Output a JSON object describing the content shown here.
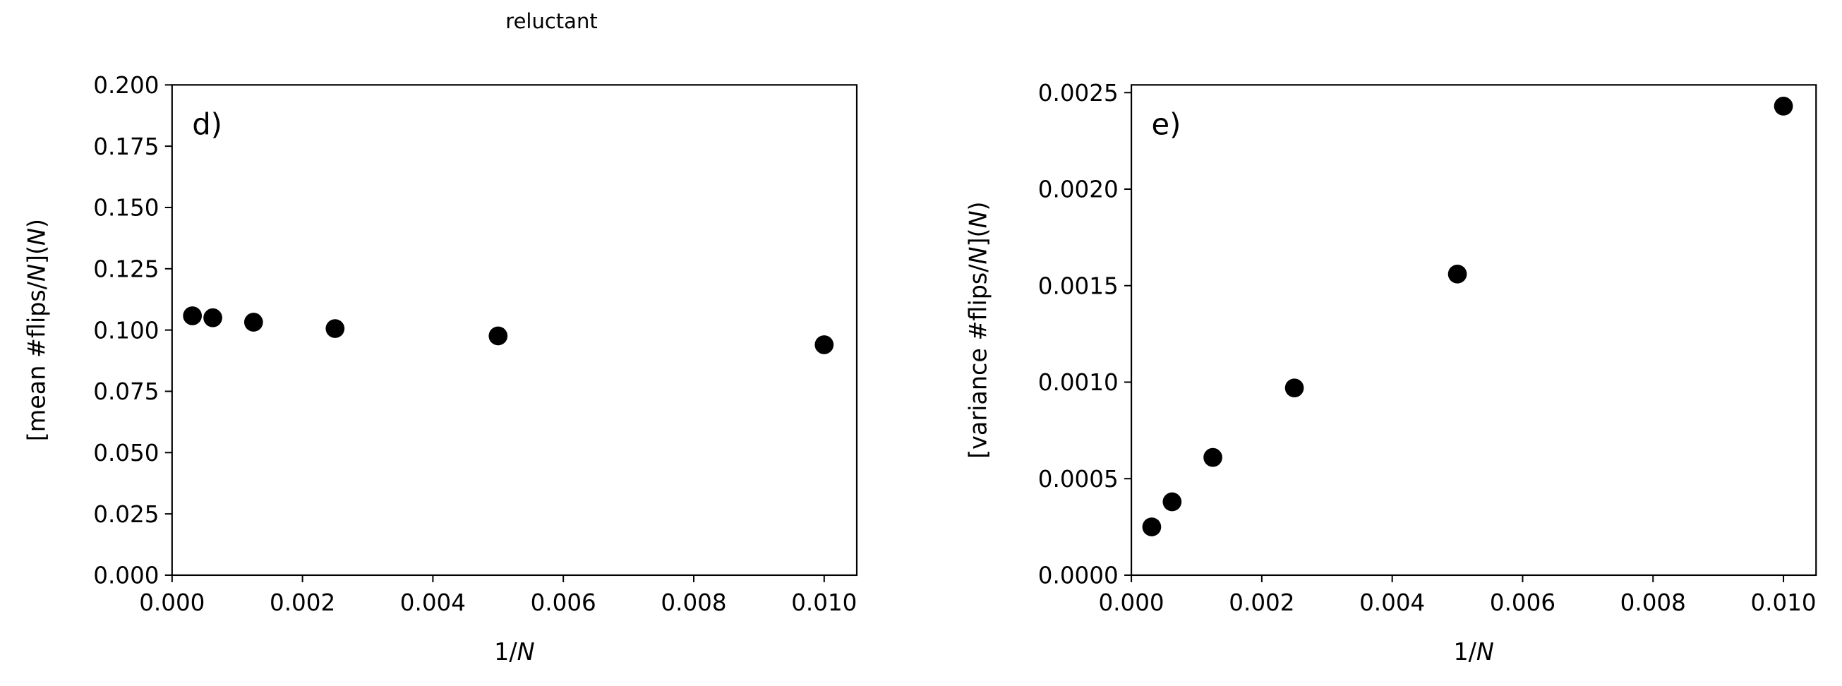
{
  "figure": {
    "suptitle": "reluctant"
  },
  "chart_data": [
    {
      "type": "scatter",
      "panel_label": "d)",
      "xlabel": "1/N",
      "ylabel": "[mean #flips/N](N)",
      "xlim": [
        0.0,
        0.0105
      ],
      "ylim": [
        0.0,
        0.2
      ],
      "xticks": [
        "0.000",
        "0.002",
        "0.004",
        "0.006",
        "0.008",
        "0.010"
      ],
      "yticks": [
        "0.000",
        "0.025",
        "0.050",
        "0.075",
        "0.100",
        "0.125",
        "0.150",
        "0.175",
        "0.200"
      ],
      "grid": false,
      "marker_color": "#000000",
      "points": [
        {
          "x": 0.0003125,
          "y": 0.1058
        },
        {
          "x": 0.000625,
          "y": 0.105
        },
        {
          "x": 0.00125,
          "y": 0.1032
        },
        {
          "x": 0.0025,
          "y": 0.1006
        },
        {
          "x": 0.005,
          "y": 0.0976
        },
        {
          "x": 0.01,
          "y": 0.094
        }
      ]
    },
    {
      "type": "scatter",
      "panel_label": "e)",
      "xlabel": "1/N",
      "ylabel": "[variance #flips/N](N)",
      "xlim": [
        0.0,
        0.0105
      ],
      "ylim": [
        0.0,
        0.00254
      ],
      "xticks": [
        "0.000",
        "0.002",
        "0.004",
        "0.006",
        "0.008",
        "0.010"
      ],
      "yticks": [
        "0.0000",
        "0.0005",
        "0.0010",
        "0.0015",
        "0.0020",
        "0.0025"
      ],
      "grid": false,
      "marker_color": "#000000",
      "points": [
        {
          "x": 0.0003125,
          "y": 0.00025
        },
        {
          "x": 0.000625,
          "y": 0.00038
        },
        {
          "x": 0.00125,
          "y": 0.00061
        },
        {
          "x": 0.0025,
          "y": 0.00097
        },
        {
          "x": 0.005,
          "y": 0.00156
        },
        {
          "x": 0.01,
          "y": 0.00243
        }
      ]
    }
  ]
}
